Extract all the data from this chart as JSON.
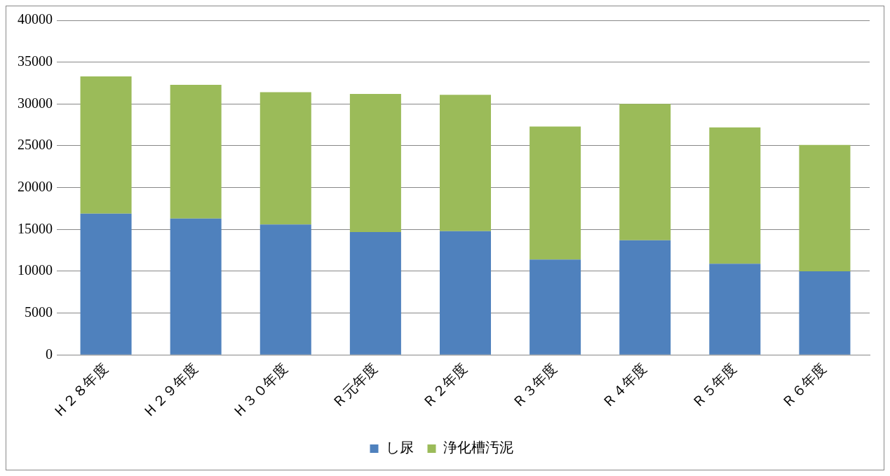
{
  "chart_data": {
    "type": "bar",
    "stacked": true,
    "categories": [
      "Ｈ２８年度",
      "Ｈ２９年度",
      "Ｈ３０年度",
      "Ｒ元年度",
      "Ｒ２年度",
      "Ｒ３年度",
      "Ｒ４年度",
      "Ｒ５年度",
      "Ｒ６年度"
    ],
    "series": [
      {
        "name": "し尿",
        "color": "#4f81bd",
        "values": [
          16900,
          16300,
          15600,
          14700,
          14800,
          11400,
          13700,
          10900,
          10000
        ]
      },
      {
        "name": "浄化槽汚泥",
        "color": "#9bbb59",
        "values": [
          16400,
          16000,
          15800,
          16500,
          16300,
          15900,
          16300,
          16300,
          15100
        ]
      }
    ],
    "ylim": [
      0,
      40000
    ],
    "yticks": [
      0,
      5000,
      10000,
      15000,
      20000,
      25000,
      30000,
      35000,
      40000
    ],
    "grid": "y",
    "legend": "bottom"
  }
}
